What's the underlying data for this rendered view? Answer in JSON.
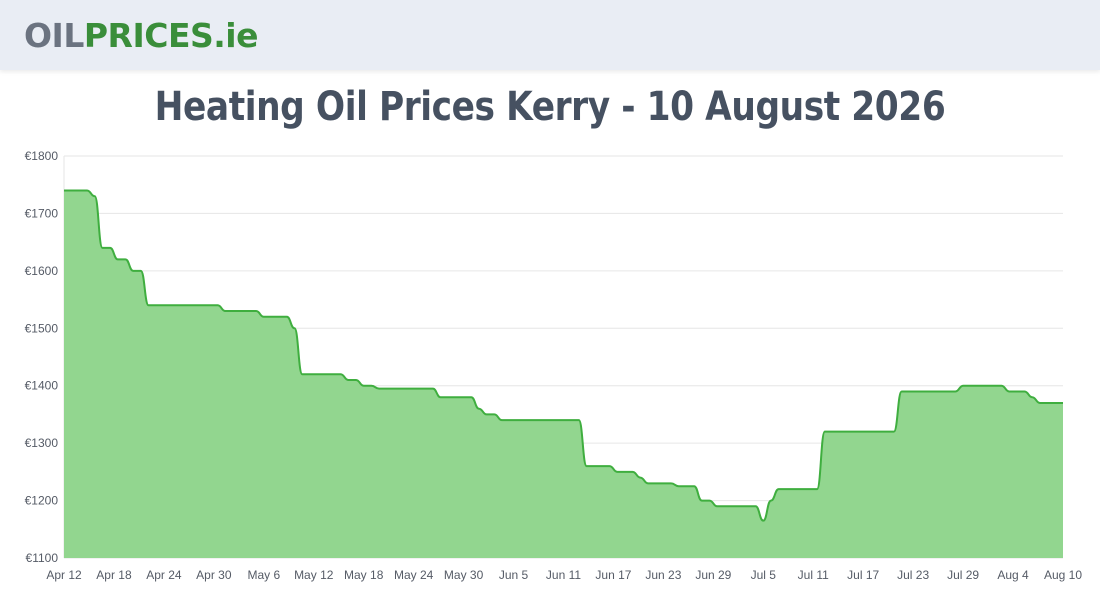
{
  "header": {
    "logo": {
      "part1": "OIL",
      "part2": "PRICES",
      "part3": ".ie"
    }
  },
  "page_title": "Heating Oil Prices Kerry - 10 August 2026",
  "colors": {
    "line": "#3fae3f",
    "fill": "#92d68f",
    "grid": "#e6e6e6",
    "header_bg": "#e9edf4",
    "title": "#465161"
  },
  "chart_data": {
    "type": "area",
    "title": "Heating Oil Prices Kerry - 10 August 2026",
    "xlabel": "",
    "ylabel": "",
    "ylim": [
      1100,
      1800
    ],
    "y_ticks": [
      1100,
      1200,
      1300,
      1400,
      1500,
      1600,
      1700,
      1800
    ],
    "y_tick_prefix": "€",
    "grid": true,
    "x_ticks": [
      "Apr 12",
      "Apr 18",
      "Apr 24",
      "Apr 30",
      "May 6",
      "May 12",
      "May 18",
      "May 24",
      "May 30",
      "Jun 5",
      "Jun 11",
      "Jun 17",
      "Jun 23",
      "Jun 29",
      "Jul 5",
      "Jul 11",
      "Jul 17",
      "Jul 23",
      "Jul 29",
      "Aug 4",
      "Aug 10"
    ],
    "series": [
      {
        "values": [
          1740,
          1740,
          1740,
          1740,
          1730,
          1640,
          1640,
          1620,
          1620,
          1600,
          1600,
          1540,
          1540,
          1540,
          1540,
          1540,
          1540,
          1540,
          1540,
          1540,
          1540,
          1530,
          1530,
          1530,
          1530,
          1530,
          1520,
          1520,
          1520,
          1520,
          1500,
          1420,
          1420,
          1420,
          1420,
          1420,
          1420,
          1410,
          1410,
          1400,
          1400,
          1395,
          1395,
          1395,
          1395,
          1395,
          1395,
          1395,
          1395,
          1380,
          1380,
          1380,
          1380,
          1380,
          1360,
          1350,
          1350,
          1340,
          1340,
          1340,
          1340,
          1340,
          1340,
          1340,
          1340,
          1340,
          1340,
          1340,
          1260,
          1260,
          1260,
          1260,
          1250,
          1250,
          1250,
          1240,
          1230,
          1230,
          1230,
          1230,
          1225,
          1225,
          1225,
          1200,
          1200,
          1190,
          1190,
          1190,
          1190,
          1190,
          1190,
          1165,
          1200,
          1220,
          1220,
          1220,
          1220,
          1220,
          1220,
          1320,
          1320,
          1320,
          1320,
          1320,
          1320,
          1320,
          1320,
          1320,
          1320,
          1390,
          1390,
          1390,
          1390,
          1390,
          1390,
          1390,
          1390,
          1400,
          1400,
          1400,
          1400,
          1400,
          1400,
          1390,
          1390,
          1390,
          1380,
          1370,
          1370,
          1370,
          1370
        ]
      }
    ]
  }
}
